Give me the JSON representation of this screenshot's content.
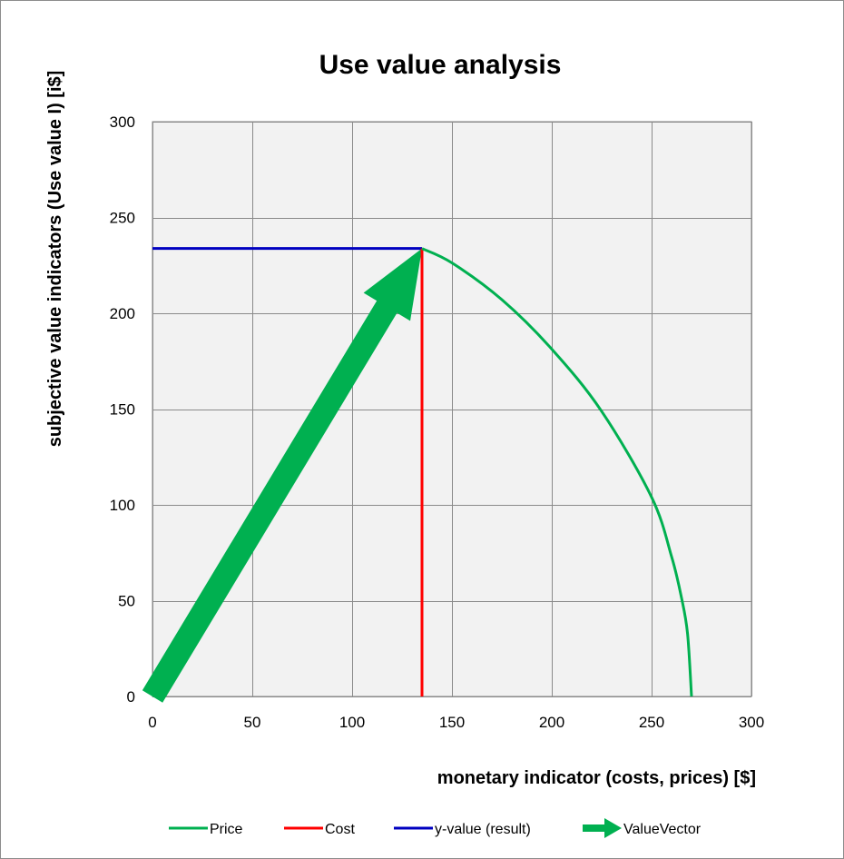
{
  "chart_data": {
    "type": "line",
    "title": "Use value analysis",
    "xlabel": "monetary indicator (costs, prices) [$]",
    "ylabel": "subjective value indicators (Use value I) [i$]",
    "xlim": [
      0,
      300
    ],
    "ylim": [
      0,
      300
    ],
    "xticks": [
      0,
      50,
      100,
      150,
      200,
      250,
      300
    ],
    "yticks": [
      0,
      50,
      100,
      150,
      200,
      250,
      300
    ],
    "grid": true,
    "plot_background": "#f2f2f2",
    "legend_position": "bottom",
    "series": [
      {
        "name": "Price",
        "color": "#00b050",
        "style": "line",
        "points": [
          [
            135,
            233.8
          ],
          [
            150,
            226.3
          ],
          [
            175,
            207.1
          ],
          [
            200,
            181.3
          ],
          [
            225,
            148.8
          ],
          [
            250,
            104.0
          ],
          [
            260,
            73.0
          ],
          [
            265,
            51.4
          ],
          [
            268,
            32.8
          ],
          [
            270,
            0
          ]
        ]
      },
      {
        "name": "Cost",
        "color": "#ff0000",
        "style": "line",
        "points": [
          [
            135,
            0
          ],
          [
            135,
            233.8
          ]
        ]
      },
      {
        "name": "y-value (result)",
        "color": "#0000c0",
        "style": "line",
        "points": [
          [
            0,
            233.8
          ],
          [
            135,
            233.8
          ]
        ]
      },
      {
        "name": "ValueVector",
        "color": "#00b050",
        "style": "arrow",
        "points": [
          [
            0,
            0
          ],
          [
            135,
            233.8
          ]
        ]
      }
    ]
  }
}
